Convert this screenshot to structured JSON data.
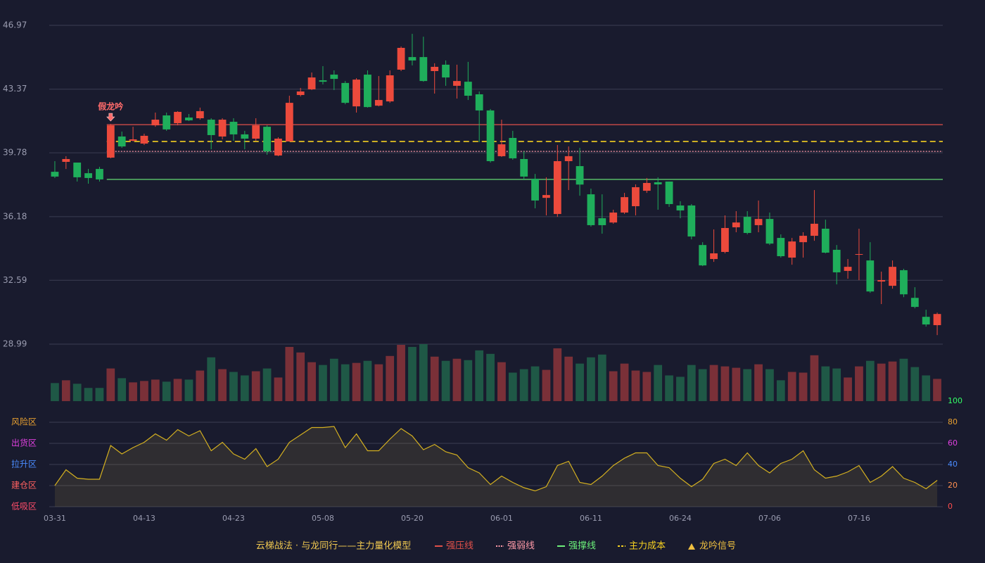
{
  "chart_data": {
    "type": "candlestick",
    "categories": [
      "03-31",
      null,
      null,
      null,
      null,
      null,
      null,
      null,
      "04-13",
      null,
      null,
      null,
      null,
      null,
      null,
      null,
      "04-23",
      null,
      null,
      null,
      null,
      null,
      null,
      null,
      "05-08",
      null,
      null,
      null,
      null,
      null,
      null,
      null,
      "05-20",
      null,
      null,
      null,
      null,
      null,
      null,
      null,
      "06-01",
      null,
      null,
      null,
      null,
      null,
      null,
      null,
      "06-11",
      null,
      null,
      null,
      null,
      null,
      null,
      null,
      "06-24",
      null,
      null,
      null,
      null,
      null,
      null,
      null,
      "07-06",
      null,
      null,
      null,
      null,
      null,
      null,
      null,
      "07-16",
      null,
      null,
      null,
      null,
      null,
      null,
      null
    ],
    "open": [
      38.71,
      39.27,
      39.23,
      38.63,
      38.87,
      39.51,
      40.7,
      40.46,
      40.3,
      41.33,
      41.89,
      41.45,
      41.77,
      41.73,
      41.65,
      40.7,
      41.53,
      40.82,
      40.58,
      41.25,
      39.63,
      40.42,
      43.04,
      43.36,
      43.87,
      44.19,
      43.72,
      42.4,
      44.19,
      42.44,
      42.68,
      44.47,
      45.18,
      45.18,
      44.39,
      44.75,
      43.56,
      43.79,
      43.08,
      42.17,
      39.59,
      40.62,
      39.43,
      38.32,
      37.24,
      36.33,
      39.31,
      39.03,
      37.44,
      36.09,
      35.85,
      36.41,
      36.77,
      37.64,
      38.12,
      38.16,
      36.81,
      36.81,
      34.58,
      33.79,
      34.19,
      35.58,
      36.17,
      35.7,
      36.05,
      34.98,
      33.87,
      34.74,
      35.1,
      35.5,
      34.31,
      33.12,
      34.03,
      33.71,
      32.52,
      32.28,
      33.16,
      31.6,
      30.53,
      30.06
    ],
    "high": [
      39.31,
      39.59,
      39.23,
      38.87,
      38.99,
      41.41,
      40.98,
      41.25,
      40.86,
      42.05,
      42.05,
      42.13,
      41.97,
      42.33,
      41.73,
      41.73,
      41.73,
      41.02,
      41.73,
      41.33,
      40.66,
      43.0,
      43.44,
      44.31,
      44.67,
      44.43,
      43.83,
      43.99,
      44.43,
      44.11,
      44.43,
      45.78,
      46.49,
      46.33,
      44.83,
      44.99,
      44.75,
      44.91,
      43.24,
      42.25,
      41.65,
      41.02,
      39.86,
      38.59,
      38.4,
      40.22,
      40.14,
      40.06,
      37.76,
      37.44,
      36.57,
      37.52,
      38.0,
      38.36,
      38.4,
      38.16,
      37.05,
      36.89,
      34.74,
      35.46,
      36.25,
      36.49,
      36.49,
      37.09,
      36.41,
      35.18,
      34.98,
      35.3,
      37.68,
      36.01,
      34.58,
      33.79,
      35.5,
      34.74,
      33.08,
      33.71,
      33.24,
      32.2,
      30.93,
      30.77
    ],
    "low": [
      38.36,
      38.87,
      38.16,
      38.04,
      38.16,
      39.47,
      40.06,
      40.42,
      40.22,
      41.25,
      41.02,
      41.33,
      41.57,
      41.65,
      39.98,
      40.54,
      40.46,
      39.98,
      40.46,
      39.67,
      39.59,
      40.42,
      42.96,
      43.32,
      43.64,
      43.32,
      42.52,
      42.05,
      42.33,
      42.4,
      42.6,
      44.39,
      44.71,
      43.79,
      43.12,
      43.56,
      42.84,
      42.76,
      40.38,
      39.23,
      39.55,
      39.39,
      38.24,
      36.65,
      36.25,
      36.17,
      37.68,
      37.36,
      35.62,
      35.22,
      35.78,
      36.33,
      36.25,
      37.52,
      36.57,
      36.73,
      36.09,
      34.9,
      33.39,
      33.63,
      34.11,
      35.3,
      35.18,
      35.3,
      34.58,
      33.87,
      33.47,
      33.87,
      34.82,
      34.11,
      32.36,
      32.68,
      32.6,
      31.88,
      31.25,
      32.12,
      31.64,
      31.01,
      29.98,
      29.5
    ],
    "close": [
      38.44,
      39.43,
      38.4,
      38.36,
      38.28,
      41.33,
      40.14,
      40.54,
      40.74,
      41.65,
      41.1,
      42.09,
      41.61,
      42.13,
      40.78,
      41.65,
      40.82,
      40.58,
      41.33,
      39.86,
      40.58,
      42.6,
      43.24,
      44.03,
      43.79,
      43.95,
      42.6,
      43.91,
      42.36,
      42.76,
      44.15,
      45.7,
      44.99,
      43.83,
      44.63,
      44.03,
      43.83,
      43.0,
      42.17,
      39.31,
      40.26,
      39.47,
      38.44,
      37.09,
      37.4,
      39.31,
      39.59,
      37.99,
      35.7,
      35.7,
      36.41,
      37.28,
      37.84,
      38.08,
      38.0,
      36.89,
      36.53,
      35.06,
      33.43,
      34.11,
      35.54,
      35.85,
      35.26,
      36.05,
      34.66,
      33.95,
      34.78,
      35.1,
      35.78,
      34.15,
      33.04,
      33.35,
      34.07,
      31.96,
      32.6,
      33.35,
      31.8,
      31.09,
      30.1,
      30.69
    ],
    "ylim": [
      28.99,
      46.97
    ],
    "yticks": [
      46.97,
      43.37,
      39.78,
      36.18,
      32.59,
      28.99
    ],
    "grid": true,
    "up_color": "#ec4a3c",
    "down_color": "#1fae5b",
    "lines": [
      {
        "name": "强压线",
        "value": 41.37,
        "color": "#e0504a",
        "style": "solid"
      },
      {
        "name": "强弱线",
        "value": 39.86,
        "color": "#ff9aa8",
        "style": "dotted"
      },
      {
        "name": "强撑线",
        "value": 38.28,
        "color": "#6cf07a",
        "style": "solid"
      },
      {
        "name": "主力成本",
        "value": 40.42,
        "color": "#f5d020",
        "style": "dashed"
      }
    ],
    "signal": {
      "name": "龙吟信号",
      "label": "假龙吟",
      "index": 5,
      "color": "#f0c040",
      "label_color": "#ff6b6b"
    },
    "volume": {
      "values": [
        26,
        30,
        25,
        19,
        19,
        47,
        33,
        27,
        29,
        31,
        28,
        32,
        31,
        44,
        63,
        46,
        42,
        37,
        43,
        47,
        34,
        78,
        70,
        56,
        52,
        61,
        53,
        55,
        58,
        53,
        65,
        81,
        78,
        82,
        64,
        58,
        61,
        59,
        73,
        68,
        56,
        41,
        46,
        50,
        45,
        76,
        64,
        54,
        63,
        67,
        43,
        54,
        44,
        42,
        52,
        37,
        35,
        52,
        46,
        52,
        50,
        48,
        46,
        53,
        46,
        30,
        42,
        41,
        66,
        50,
        47,
        34,
        50,
        58,
        54,
        57,
        61,
        49,
        37,
        32
      ],
      "ylim": [
        0,
        82
      ],
      "up_color": "#7a3038",
      "down_color": "#1f5846"
    },
    "indicator": {
      "values": [
        20,
        35,
        27,
        26,
        26,
        58,
        50,
        56,
        61,
        69,
        63,
        73,
        67,
        72,
        53,
        61,
        50,
        45,
        55,
        38,
        45,
        61,
        68,
        75,
        75,
        76,
        56,
        69,
        53,
        53,
        64,
        74,
        67,
        54,
        59,
        52,
        49,
        37,
        32,
        21,
        29,
        23,
        18,
        15,
        19,
        39,
        43,
        23,
        21,
        29,
        39,
        46,
        51,
        51,
        39,
        37,
        27,
        19,
        26,
        41,
        45,
        39,
        51,
        39,
        32,
        41,
        45,
        53,
        35,
        27,
        29,
        33,
        39,
        23,
        29,
        38,
        27,
        23,
        17,
        25
      ],
      "ylim": [
        0,
        100
      ],
      "yticks": [
        0,
        20,
        40,
        60,
        80,
        100
      ],
      "ytick_colors": [
        "#ff4d4d",
        "#ff9050",
        "#4a8cff",
        "#e040e0",
        "#e8a030",
        "#33ff66"
      ],
      "zones": [
        {
          "value": 80,
          "label": "风险区",
          "color": "#e8a030"
        },
        {
          "value": 60,
          "label": "出货区",
          "color": "#e040e0"
        },
        {
          "value": 40,
          "label": "拉升区",
          "color": "#4a8cff"
        },
        {
          "value": 20,
          "label": "建仓区",
          "color": "#ff6060"
        },
        {
          "value": 0,
          "label": "低吸区",
          "color": "#ff4d6a"
        }
      ],
      "color": "#d4b020"
    },
    "legend_title": "云梯战法 · 与龙同行——主力量化模型"
  }
}
